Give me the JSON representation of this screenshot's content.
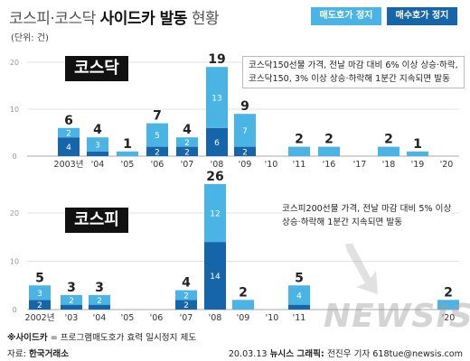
{
  "header": {
    "title_part1": "코스피·코스닥 ",
    "title_part2": "사이드카 발동",
    "title_part3": " 현황",
    "unit": "(단위: 건)"
  },
  "legend": {
    "sell": "매도호가 정지",
    "buy": "매수호가 정지"
  },
  "colors": {
    "sell": "#4ab4e4",
    "buy": "#1565a8",
    "axis": "#cccccc",
    "text": "#222222"
  },
  "kosdaq_label": "코스닥",
  "kospi_label": "코스피",
  "kosdaq_note": [
    "코스닥150선물 가격, 전날 마감 대비 6% 이상 상승·하락,",
    "코스닥150, 3% 이상 상승·하락해 1분간 지속되면 발동"
  ],
  "kospi_note": [
    "코스피200선물 가격, 전날 마감 대비 5% 이상",
    "상승·하락해 1분간 지속되면 발동"
  ],
  "footnote_label": "※사이드카",
  "footnote_text": " = 프로그램매도호가 효력 일시정지 제도",
  "source_label": "자료: ",
  "source_value": "한국거래소",
  "credit_date": "20.03.13 ",
  "credit_org": "뉴시스 그래픽: ",
  "credit_name": "전진우 기자 618tue@newsis.com",
  "watermark": "NEWSIS",
  "chart_data": [
    {
      "type": "bar",
      "name": "코스닥",
      "categories": [
        "2003년",
        "'04",
        "'05",
        "'06",
        "'07",
        "'08",
        "'09",
        "'10",
        "'11",
        "'16",
        "'17",
        "'18",
        "'19",
        "'20"
      ],
      "total": [
        6,
        4,
        1,
        7,
        4,
        19,
        9,
        null,
        2,
        2,
        null,
        2,
        1,
        null
      ],
      "series": [
        {
          "name": "매도호가 정지",
          "values": [
            2,
            3,
            null,
            5,
            2,
            13,
            7,
            null,
            null,
            null,
            null,
            null,
            null,
            null
          ]
        },
        {
          "name": "매수호가 정지",
          "values": [
            4,
            1,
            null,
            2,
            2,
            6,
            2,
            null,
            null,
            null,
            null,
            null,
            null,
            null
          ]
        }
      ],
      "ylim": [
        0,
        20
      ],
      "yticks": [
        0,
        10,
        20
      ],
      "stacked": true
    },
    {
      "type": "bar",
      "name": "코스피",
      "categories": [
        "2002년",
        "'03",
        "'04",
        "'05",
        "'06",
        "'07",
        "'08",
        "'09",
        "'10",
        "'11",
        "'20"
      ],
      "total": [
        5,
        3,
        3,
        null,
        null,
        4,
        26,
        2,
        null,
        5,
        2
      ],
      "series": [
        {
          "name": "매도호가 정지",
          "values": [
            3,
            2,
            2,
            null,
            null,
            2,
            12,
            null,
            null,
            4,
            null
          ]
        },
        {
          "name": "매수호가 정지",
          "values": [
            2,
            1,
            1,
            null,
            null,
            2,
            14,
            null,
            null,
            1,
            null
          ]
        }
      ],
      "ylim": [
        0,
        26
      ],
      "yticks": [
        0,
        10,
        20
      ],
      "stacked": true
    }
  ]
}
